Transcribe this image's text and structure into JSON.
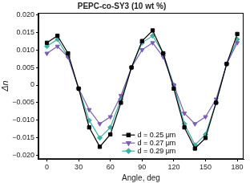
{
  "chart_data": {
    "type": "line",
    "title": "PEPC-co-SY3 (10 wt %)",
    "x_label": "Angle, deg",
    "y_label": "Δn",
    "x": [
      0,
      10,
      20,
      30,
      40,
      50,
      60,
      70,
      80,
      90,
      100,
      110,
      120,
      130,
      140,
      150,
      160,
      170,
      180
    ],
    "series": [
      {
        "name": "d = 0.25 μm",
        "color": "#000000",
        "marker": "square",
        "line_style": "solid",
        "values": [
          0.012,
          0.014,
          0.009,
          -0.001,
          -0.012,
          -0.0175,
          -0.014,
          -0.005,
          0.005,
          0.0125,
          0.0155,
          0.009,
          -0.001,
          -0.012,
          -0.018,
          -0.015,
          -0.005,
          0.006,
          0.0145
        ]
      },
      {
        "name": "d = 0.27 μm",
        "color": "#7a5fb0",
        "marker": "triangle_down",
        "line_style": "solid",
        "values": [
          0.009,
          0.011,
          0.008,
          -0.001,
          -0.007,
          -0.011,
          -0.009,
          -0.003,
          0.005,
          0.01,
          0.012,
          0.008,
          0.0,
          -0.008,
          -0.011,
          -0.009,
          -0.004,
          0.006,
          0.012
        ]
      },
      {
        "name": "d = 0.29 μm",
        "color": "#3fb0a4",
        "marker": "diamond",
        "line_style": "solid",
        "values": [
          0.011,
          0.013,
          0.008,
          -0.001,
          -0.01,
          -0.015,
          -0.012,
          -0.004,
          0.005,
          0.012,
          0.014,
          0.009,
          0.0,
          -0.011,
          -0.017,
          -0.014,
          -0.005,
          0.006,
          0.013
        ]
      }
    ],
    "xlim": [
      -8,
      186
    ],
    "xticks": [
      0,
      30,
      60,
      90,
      120,
      150,
      180
    ],
    "ylim": [
      -0.021,
      0.0205
    ],
    "yticks": [
      {
        "value": -0.02,
        "label": "−0.020"
      },
      {
        "value": -0.015,
        "label": "−0.015"
      },
      {
        "value": -0.01,
        "label": "−0.010"
      },
      {
        "value": -0.005,
        "label": "−0.005"
      },
      {
        "value": 0,
        "label": "0"
      },
      {
        "value": 0.005,
        "label": "0.005"
      },
      {
        "value": 0.01,
        "label": "0.010"
      },
      {
        "value": 0.015,
        "label": "0.015"
      },
      {
        "value": 0.02,
        "label": "0.020"
      }
    ],
    "grid": false,
    "legend": "lower center"
  }
}
